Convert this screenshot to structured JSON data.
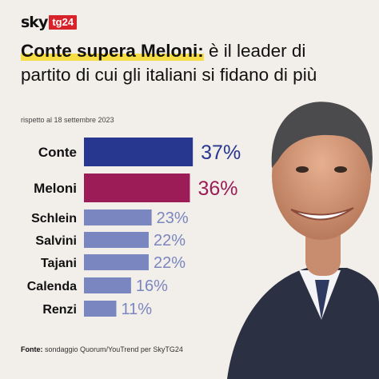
{
  "brand": {
    "sky": "sky",
    "tg": "tg24"
  },
  "header": {
    "title_highlight": "Conte supera Meloni:",
    "title_rest": " è il leader di partito di cui gli italiani si fidano di più",
    "subtitle": "rispetto al 18 settembre 2023"
  },
  "source": {
    "label": "Fonte:",
    "text": " sondaggio Quorum/YouTrend per SkyTG24"
  },
  "colors": {
    "conte": "#27378f",
    "meloni": "#9c1c57",
    "others": "#7a86bf",
    "highlight": "#f6dc45",
    "brand_red": "#d8232a"
  },
  "chart_data": {
    "type": "bar",
    "orientation": "horizontal",
    "categories": [
      "Conte",
      "Meloni",
      "Schlein",
      "Salvini",
      "Tajani",
      "Calenda",
      "Renzi"
    ],
    "values": [
      37,
      36,
      23,
      22,
      22,
      16,
      11
    ],
    "value_labels": [
      "37%",
      "36%",
      "23%",
      "22%",
      "22%",
      "16%",
      "11%"
    ],
    "bar_colors": [
      "#27378f",
      "#9c1c57",
      "#7a86bf",
      "#7a86bf",
      "#7a86bf",
      "#7a86bf",
      "#7a86bf"
    ],
    "emphasized": [
      true,
      true,
      false,
      false,
      false,
      false,
      false
    ],
    "unit": "%",
    "grid": false
  }
}
